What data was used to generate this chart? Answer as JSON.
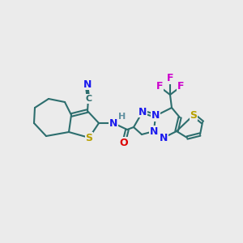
{
  "background_color": "#ebebeb",
  "bond_color": "#2d6e6e",
  "bond_color_dark": "#1a4a4a",
  "atom_colors": {
    "S": "#b8a000",
    "N": "#1a1aee",
    "O": "#dd0000",
    "F": "#cc00cc",
    "C_lbl": "#2d6e6e",
    "H": "#6090a0"
  },
  "lw": 1.5,
  "figsize": [
    3.0,
    3.0
  ],
  "dpi": 100
}
